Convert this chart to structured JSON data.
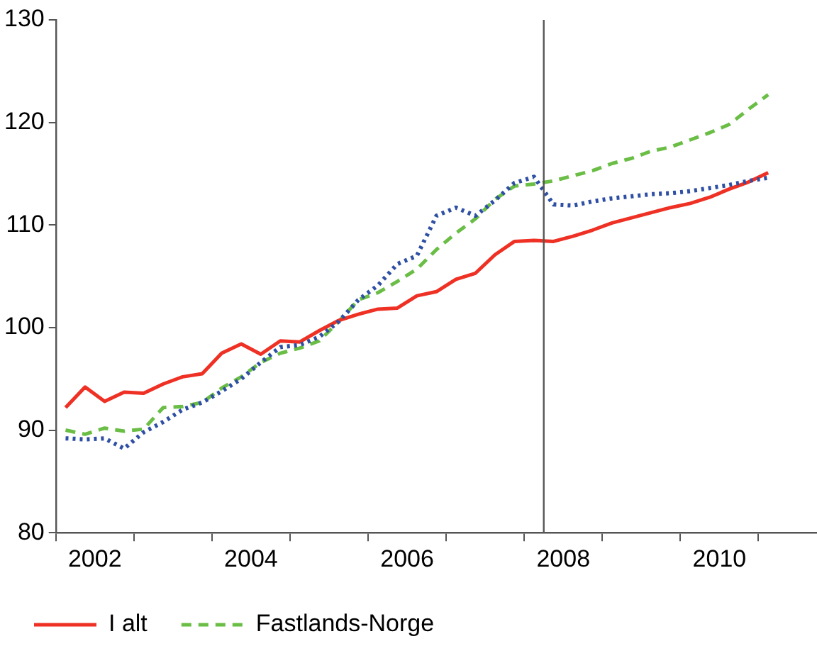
{
  "chart_data": {
    "type": "line",
    "x": [
      2002.125,
      2002.375,
      2002.625,
      2002.875,
      2003.125,
      2003.375,
      2003.625,
      2003.875,
      2004.125,
      2004.375,
      2004.625,
      2004.875,
      2005.125,
      2005.375,
      2005.625,
      2005.875,
      2006.125,
      2006.375,
      2006.625,
      2006.875,
      2007.125,
      2007.375,
      2007.625,
      2007.875,
      2008.125,
      2008.375,
      2008.625,
      2008.875,
      2009.125,
      2009.375,
      2009.625,
      2009.875,
      2010.125,
      2010.375,
      2010.625,
      2010.875,
      2011.125
    ],
    "series": [
      {
        "name": "I alt",
        "color": "#ee3124",
        "line_style": "solid",
        "values": [
          92.2,
          94.2,
          92.8,
          93.7,
          93.6,
          94.5,
          95.2,
          95.5,
          97.5,
          98.4,
          97.4,
          98.7,
          98.6,
          99.7,
          100.7,
          101.3,
          101.8,
          101.9,
          103.1,
          103.5,
          104.7,
          105.3,
          107.1,
          108.4,
          108.5,
          108.4,
          108.9,
          109.5,
          110.2,
          110.7,
          111.2,
          111.7,
          112.1,
          112.7,
          113.5,
          114.2,
          115.1
        ]
      },
      {
        "name": "Fastlands-Norge",
        "color": "#6abd45",
        "line_style": "dashed",
        "values": [
          90.0,
          89.6,
          90.2,
          89.9,
          90.1,
          92.2,
          92.3,
          92.7,
          94.1,
          95.2,
          96.6,
          97.5,
          98.0,
          98.7,
          100.6,
          102.7,
          103.4,
          104.5,
          105.7,
          107.6,
          109.2,
          110.6,
          112.5,
          113.8,
          114.0,
          114.3,
          114.8,
          115.3,
          116.0,
          116.5,
          117.2,
          117.6,
          118.3,
          119.0,
          119.8,
          121.3,
          122.7
        ]
      },
      {
        "color": "#2e4fa3",
        "line_style": "dotted",
        "values": [
          89.2,
          89.1,
          89.2,
          88.2,
          89.8,
          90.8,
          92.0,
          92.7,
          93.8,
          95.0,
          96.6,
          98.1,
          98.3,
          99.1,
          100.6,
          102.7,
          104.1,
          106.2,
          107.0,
          110.9,
          111.7,
          110.9,
          112.4,
          114.1,
          114.7,
          112.0,
          111.9,
          112.3,
          112.6,
          112.8,
          113.0,
          113.1,
          113.3,
          113.6,
          113.9,
          114.3,
          114.6
        ]
      }
    ],
    "xlim": [
      2002,
      2011.75
    ],
    "xticks": [
      {
        "value": 2002,
        "label": null
      },
      {
        "value": 2002.5,
        "label": "2002"
      },
      {
        "value": 2003,
        "label": null
      },
      {
        "value": 2004,
        "label": null
      },
      {
        "value": 2004.5,
        "label": "2004"
      },
      {
        "value": 2005,
        "label": null
      },
      {
        "value": 2006,
        "label": null
      },
      {
        "value": 2006.5,
        "label": "2006"
      },
      {
        "value": 2007,
        "label": null
      },
      {
        "value": 2008,
        "label": null
      },
      {
        "value": 2008.5,
        "label": "2008"
      },
      {
        "value": 2009,
        "label": null
      },
      {
        "value": 2010,
        "label": null
      },
      {
        "value": 2010.5,
        "label": "2010"
      },
      {
        "value": 2011,
        "label": null
      }
    ],
    "ylim": [
      80,
      130
    ],
    "yticks": [
      80,
      90,
      100,
      110,
      120,
      130
    ],
    "ref_lines": [
      {
        "axis": "x",
        "value": 2008.25,
        "color": "#555555"
      }
    ],
    "grid": false,
    "legend": "bottom"
  }
}
